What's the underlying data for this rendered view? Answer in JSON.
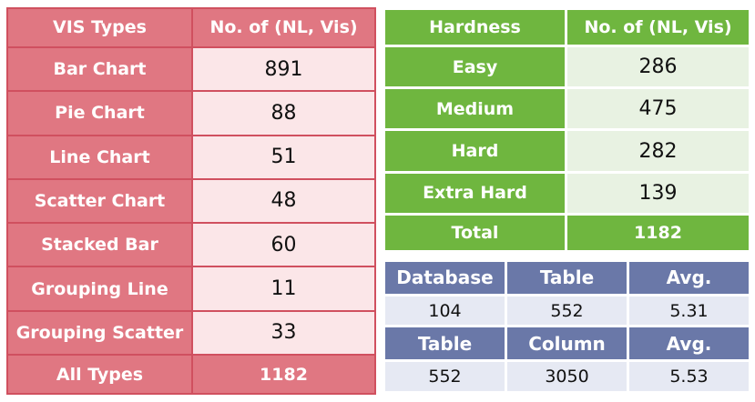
{
  "vis_table": {
    "header": {
      "col1": "VIS Types",
      "col2": "No. of (NL, Vis)"
    },
    "rows": [
      {
        "label": "Bar Chart",
        "value": "891"
      },
      {
        "label": "Pie Chart",
        "value": "88"
      },
      {
        "label": "Line Chart",
        "value": "51"
      },
      {
        "label": "Scatter Chart",
        "value": "48"
      },
      {
        "label": "Stacked Bar",
        "value": "60"
      },
      {
        "label": "Grouping Line",
        "value": "11"
      },
      {
        "label": "Grouping Scatter",
        "value": "33"
      }
    ],
    "total": {
      "label": "All Types",
      "value": "1182"
    }
  },
  "hardness_table": {
    "header": {
      "col1": "Hardness",
      "col2": "No. of (NL, Vis)"
    },
    "rows": [
      {
        "label": "Easy",
        "value": "286"
      },
      {
        "label": "Medium",
        "value": "475"
      },
      {
        "label": "Hard",
        "value": "282"
      },
      {
        "label": "Extra Hard",
        "value": "139"
      }
    ],
    "total": {
      "label": "Total",
      "value": "1182"
    }
  },
  "db_table": {
    "header1": [
      "Database",
      "Table",
      "Avg."
    ],
    "row1": [
      "104",
      "552",
      "5.31"
    ],
    "header2": [
      "Table",
      "Column",
      "Avg."
    ],
    "row2": [
      "552",
      "3050",
      "5.53"
    ]
  },
  "colors": {
    "vis_accent": "#e07782",
    "vis_light": "#fbe6e8",
    "hardness_accent": "#6fb63f",
    "hardness_light": "#e8f2e2",
    "db_accent": "#6a78a8",
    "db_light": "#e6e9f3"
  }
}
